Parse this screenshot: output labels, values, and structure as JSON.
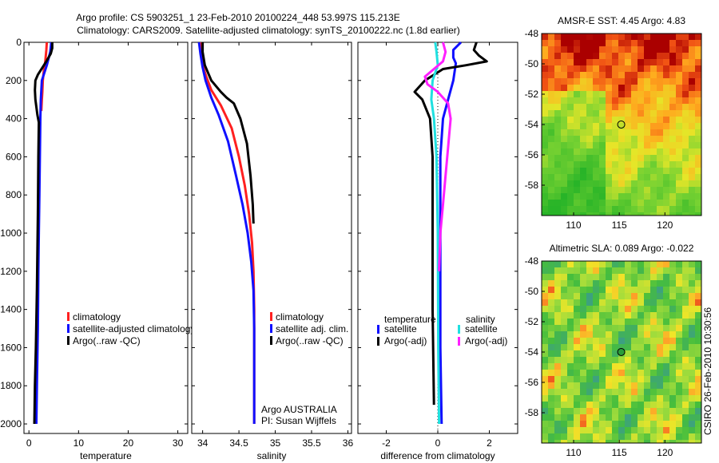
{
  "header": {
    "line1": "Argo profile: CS 5903251_1 23-Feb-2010 20100224_448 53.997S 115.213E",
    "line2": "Climatology: CARS2009. Satellite-adjusted climatology: synTS_20100222.nc (1.8d earlier)"
  },
  "side_label": "CSIRO 26-Feb-2010 10:30:56",
  "colors": {
    "clim": "#ff2020",
    "sat": "#1010ff",
    "argo": "#000000",
    "cyan": "#20e0e0",
    "magenta": "#ff20ff",
    "marker_fill": "#2a9d3a"
  },
  "chart_data": [
    {
      "id": "temperature",
      "type": "line",
      "xlabel": "temperature",
      "ylabel": "",
      "xlim": [
        -1,
        32
      ],
      "ylim": [
        2050,
        0
      ],
      "xticks": [
        0,
        10,
        20,
        30
      ],
      "xtick_labels": [
        "0",
        "10",
        "20",
        "30"
      ],
      "yticks": [
        0,
        200,
        400,
        600,
        800,
        1000,
        1200,
        1400,
        1600,
        1800,
        2000
      ],
      "ytick_labels": [
        "0",
        "200",
        "400",
        "600",
        "800",
        "1000",
        "1200",
        "1400",
        "1600",
        "1800",
        "2000"
      ],
      "series": [
        {
          "name": "climatology",
          "color_key": "clim",
          "points": [
            [
              3.6,
              0
            ],
            [
              3.5,
              40
            ],
            [
              3.3,
              100
            ],
            [
              3.0,
              150
            ],
            [
              2.8,
              200
            ],
            [
              2.7,
              260
            ],
            [
              2.6,
              300
            ],
            [
              2.5,
              360
            ]
          ]
        },
        {
          "name": "satellite-adjusted climatology",
          "color_key": "sat",
          "points": [
            [
              4.5,
              0
            ],
            [
              4.3,
              50
            ],
            [
              3.6,
              120
            ],
            [
              2.6,
              200
            ],
            [
              2.4,
              300
            ],
            [
              2.3,
              400
            ],
            [
              2.2,
              600
            ],
            [
              2.1,
              800
            ],
            [
              2.0,
              1000
            ],
            [
              1.9,
              1200
            ],
            [
              1.8,
              1500
            ],
            [
              1.6,
              1800
            ],
            [
              1.5,
              2000
            ]
          ]
        },
        {
          "name": "Argo(..raw -QC)",
          "color_key": "argo",
          "points": [
            [
              4.7,
              0
            ],
            [
              4.7,
              30
            ],
            [
              4.4,
              60
            ],
            [
              3.5,
              100
            ],
            [
              1.8,
              170
            ],
            [
              1.3,
              200
            ],
            [
              1.2,
              250
            ],
            [
              1.3,
              300
            ],
            [
              1.7,
              380
            ],
            [
              2.0,
              420
            ],
            [
              1.9,
              600
            ],
            [
              1.8,
              900
            ],
            [
              1.6,
              1300
            ],
            [
              1.4,
              1600
            ],
            [
              1.2,
              1800
            ],
            [
              1.1,
              2000
            ]
          ]
        }
      ],
      "legend": {
        "position": "lower-middle",
        "items": [
          "climatology",
          "satellite-adjusted climatology",
          "Argo(..raw -QC)"
        ]
      }
    },
    {
      "id": "salinity",
      "type": "line",
      "xlabel": "salinity",
      "ylabel": "",
      "xlim": [
        33.85,
        36.05
      ],
      "ylim": [
        2050,
        0
      ],
      "xticks": [
        34,
        34.5,
        35,
        35.5,
        36
      ],
      "xtick_labels": [
        "34",
        "34.5",
        "35",
        "35.5",
        "36"
      ],
      "series": [
        {
          "name": "climatology",
          "color_key": "clim",
          "points": [
            [
              33.97,
              0
            ],
            [
              33.98,
              60
            ],
            [
              34.0,
              120
            ],
            [
              34.05,
              180
            ],
            [
              34.12,
              250
            ],
            [
              34.25,
              330
            ],
            [
              34.4,
              450
            ],
            [
              34.5,
              600
            ],
            [
              34.58,
              750
            ],
            [
              34.64,
              900
            ],
            [
              34.68,
              1050
            ],
            [
              34.7,
              1200
            ],
            [
              34.71,
              1400
            ],
            [
              34.71,
              1700
            ],
            [
              34.71,
              2000
            ]
          ]
        },
        {
          "name": "satellite adj. clim.",
          "color_key": "sat",
          "points": [
            [
              33.95,
              0
            ],
            [
              33.97,
              60
            ],
            [
              34.0,
              130
            ],
            [
              34.04,
              200
            ],
            [
              34.12,
              290
            ],
            [
              34.22,
              380
            ],
            [
              34.35,
              520
            ],
            [
              34.46,
              700
            ],
            [
              34.55,
              850
            ],
            [
              34.62,
              1000
            ],
            [
              34.67,
              1150
            ],
            [
              34.7,
              1300
            ],
            [
              34.71,
              1500
            ],
            [
              34.71,
              1800
            ],
            [
              34.71,
              2000
            ]
          ]
        },
        {
          "name": "Argo(..raw -QC)",
          "color_key": "argo",
          "points": [
            [
              34.0,
              0
            ],
            [
              34.0,
              50
            ],
            [
              34.03,
              120
            ],
            [
              34.12,
              200
            ],
            [
              34.25,
              260
            ],
            [
              34.33,
              290
            ],
            [
              34.43,
              320
            ],
            [
              34.52,
              400
            ],
            [
              34.61,
              530
            ],
            [
              34.66,
              700
            ],
            [
              34.69,
              850
            ],
            [
              34.7,
              950
            ]
          ]
        }
      ],
      "legend": {
        "position": "lower-middle",
        "items": [
          "climatology",
          "satellite adj. clim.",
          "Argo(..raw -QC)"
        ]
      },
      "annotation": [
        "Argo AUSTRALIA",
        "PI: Susan Wijffels"
      ]
    },
    {
      "id": "difference",
      "type": "line",
      "xlabel": "difference from climatology",
      "ylabel": "",
      "xlim": [
        -3.1,
        3.1
      ],
      "ylim": [
        2050,
        0
      ],
      "xticks": [
        -2,
        0,
        2
      ],
      "xtick_labels": [
        "-2",
        "0",
        "2"
      ],
      "zero_line": true,
      "series": [
        {
          "name": "temperature satellite",
          "color_key": "sat",
          "points": [
            [
              0.9,
              0
            ],
            [
              0.6,
              40
            ],
            [
              0.6,
              80
            ],
            [
              0.7,
              110
            ],
            [
              0.6,
              200
            ],
            [
              0.4,
              300
            ],
            [
              0.2,
              400
            ],
            [
              0.1,
              600
            ],
            [
              0.1,
              1000
            ],
            [
              0.1,
              1600
            ],
            [
              0.15,
              2000
            ]
          ]
        },
        {
          "name": "temperature Argo(-adj)",
          "color_key": "argo",
          "points": [
            [
              1.5,
              0
            ],
            [
              1.4,
              40
            ],
            [
              1.6,
              70
            ],
            [
              1.9,
              100
            ],
            [
              1.1,
              120
            ],
            [
              0.2,
              140
            ],
            [
              -0.5,
              200
            ],
            [
              -0.9,
              260
            ],
            [
              -0.6,
              300
            ],
            [
              -0.3,
              400
            ],
            [
              -0.2,
              600
            ],
            [
              -0.2,
              1000
            ],
            [
              -0.2,
              1400
            ],
            [
              -0.15,
              1900
            ]
          ]
        },
        {
          "name": "salinity satellite",
          "color_key": "cyan",
          "points": [
            [
              -0.1,
              0
            ],
            [
              -0.05,
              50
            ],
            [
              0.0,
              120
            ],
            [
              -0.2,
              200
            ],
            [
              -0.25,
              300
            ],
            [
              -0.15,
              400
            ],
            [
              -0.05,
              600
            ],
            [
              0.0,
              1000
            ],
            [
              0.02,
              1600
            ],
            [
              0.05,
              2000
            ]
          ]
        },
        {
          "name": "salinity Argo(-adj)",
          "color_key": "magenta",
          "points": [
            [
              0.2,
              0
            ],
            [
              0.3,
              50
            ],
            [
              0.2,
              100
            ],
            [
              -0.5,
              180
            ],
            [
              -0.4,
              220
            ],
            [
              0.0,
              260
            ],
            [
              0.4,
              320
            ],
            [
              0.5,
              400
            ],
            [
              0.4,
              550
            ],
            [
              0.3,
              700
            ],
            [
              0.2,
              850
            ],
            [
              0.1,
              1000
            ],
            [
              0.05,
              1200
            ]
          ]
        }
      ],
      "legend_left": {
        "heading": "temperature",
        "items": [
          "satellite",
          "Argo(-adj)"
        ]
      },
      "legend_right": {
        "heading": "salinity",
        "items": [
          "satellite",
          "Argo(-adj)"
        ]
      }
    },
    {
      "id": "sst_map",
      "type": "heatmap",
      "title": "AMSR-E SST: 4.45 Argo: 4.83",
      "xlim": [
        106.5,
        124
      ],
      "ylim": [
        -60,
        -48
      ],
      "xticks": [
        110,
        115,
        120
      ],
      "xtick_labels": [
        "110",
        "115",
        "120"
      ],
      "yticks": [
        -48,
        -50,
        -52,
        -54,
        -56,
        -58
      ],
      "ytick_labels": [
        "-48",
        "-50",
        "-52",
        "-54",
        "-56",
        "-58"
      ],
      "marker": {
        "lon": 115.213,
        "lat": -53.997
      }
    },
    {
      "id": "sla_map",
      "type": "heatmap",
      "title": "Altimetric SLA: 0.089 Argo: -0.022",
      "xlim": [
        106.5,
        124
      ],
      "ylim": [
        -60,
        -48
      ],
      "xticks": [
        110,
        115,
        120
      ],
      "xtick_labels": [
        "110",
        "115",
        "120"
      ],
      "yticks": [
        -48,
        -50,
        -52,
        -54,
        -56,
        -58
      ],
      "ytick_labels": [
        "-48",
        "-50",
        "-52",
        "-54",
        "-56",
        "-58"
      ],
      "marker": {
        "lon": 115.213,
        "lat": -53.997
      }
    }
  ]
}
